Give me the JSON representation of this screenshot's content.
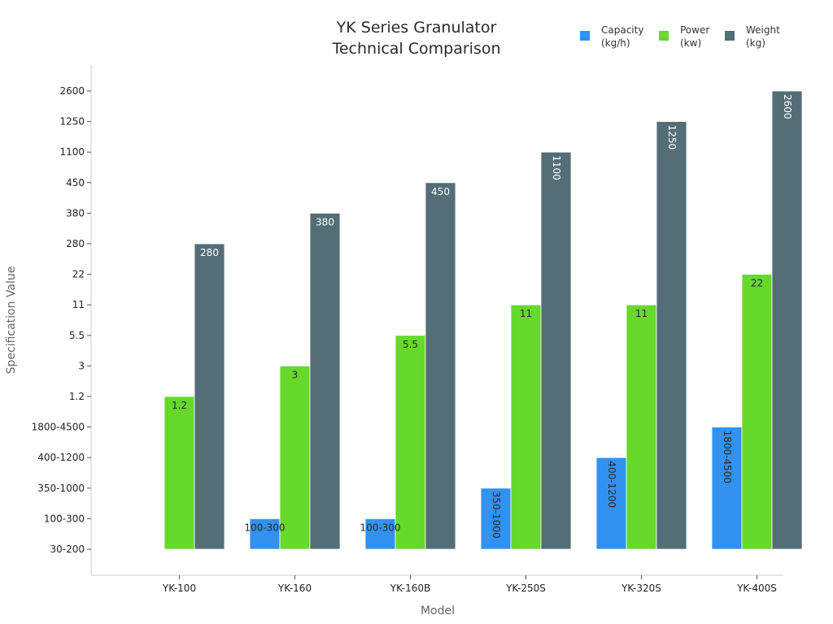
{
  "chart_data": {
    "type": "bar",
    "title": [
      "YK Series Granulator",
      "Technical Comparison"
    ],
    "xlabel": "Model",
    "ylabel": "Specification Value",
    "categories": [
      "YK-100",
      "YK-160",
      "YK-160B",
      "YK-250S",
      "YK-320S",
      "YK-400S"
    ],
    "y_tick_labels": [
      "30-200",
      "100-300",
      "350-1000",
      "400-1200",
      "1800-4500",
      "1.2",
      "3",
      "5.5",
      "11",
      "22",
      "280",
      "380",
      "450",
      "1100",
      "1250",
      "2600"
    ],
    "series": [
      {
        "name": "Capacity\n(kg/h)",
        "color": "#3391f0",
        "values": [
          "30-200",
          "100-300",
          "100-300",
          "350-1000",
          "400-1200",
          "1800-4500"
        ],
        "labels": [
          "",
          "100-300",
          "100-300",
          "350-1000",
          "400-1200",
          "1800-4500"
        ],
        "label_color": "#2a2a2a"
      },
      {
        "name": "Power\n(kw)",
        "color": "#66d92a",
        "values": [
          "1.2",
          "3",
          "5.5",
          "11",
          "11",
          "22"
        ],
        "labels": [
          "1.2",
          "3",
          "5.5",
          "11",
          "11",
          "22"
        ],
        "label_color": "#2a2a2a"
      },
      {
        "name": "Weight\n(kg)",
        "color": "#546e78",
        "values": [
          "280",
          "380",
          "450",
          "1100",
          "1250",
          "2600"
        ],
        "labels": [
          "280",
          "380",
          "450",
          "1100",
          "1250",
          "2600"
        ],
        "label_color": "#ffffff"
      }
    ],
    "grid": false,
    "legend_position": "top-right"
  }
}
